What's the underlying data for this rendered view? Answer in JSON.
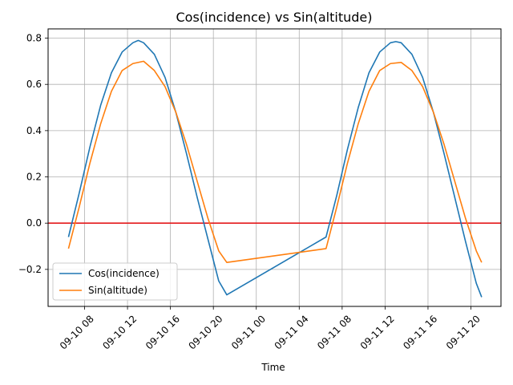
{
  "chart_data": {
    "type": "line",
    "title": "Cos(incidence) vs Sin(altitude)",
    "xlabel": "Time",
    "ylabel": "",
    "x_tick_labels": [
      "09-10 08",
      "09-10 12",
      "09-10 16",
      "09-10 20",
      "09-11 00",
      "09-11 04",
      "09-11 08",
      "09-11 12",
      "09-11 16",
      "09-11 20"
    ],
    "x_ticks": [
      "2019-09-10 08:00",
      "2019-09-10 12:00",
      "2019-09-10 16:00",
      "2019-09-10 20:00",
      "2019-09-11 00:00",
      "2019-09-11 04:00",
      "2019-09-11 08:00",
      "2019-09-11 12:00",
      "2019-09-11 16:00",
      "2019-09-11 20:00"
    ],
    "xlim": [
      "2019-09-10 04:36",
      "2019-09-11 22:48"
    ],
    "y_ticks": [
      -0.2,
      0.0,
      0.2,
      0.4,
      0.6,
      0.8
    ],
    "y_tick_labels": [
      "−0.2",
      "0.0",
      "0.2",
      "0.4",
      "0.6",
      "0.8"
    ],
    "ylim": [
      -0.36,
      0.84
    ],
    "grid": true,
    "legend_position": "lower-left",
    "reference_line": {
      "y": 0.0,
      "color": "#e41a1c"
    },
    "series": [
      {
        "name": "Cos(incidence)",
        "color": "#1f77b4",
        "points": [
          [
            "2019-09-10 06:30",
            -0.06
          ],
          [
            "2019-09-10 07:30",
            0.13
          ],
          [
            "2019-09-10 08:30",
            0.33
          ],
          [
            "2019-09-10 09:30",
            0.51
          ],
          [
            "2019-09-10 10:30",
            0.65
          ],
          [
            "2019-09-10 11:30",
            0.74
          ],
          [
            "2019-09-10 12:30",
            0.78
          ],
          [
            "2019-09-10 13:00",
            0.79
          ],
          [
            "2019-09-10 13:30",
            0.78
          ],
          [
            "2019-09-10 14:30",
            0.73
          ],
          [
            "2019-09-10 15:30",
            0.63
          ],
          [
            "2019-09-10 16:30",
            0.48
          ],
          [
            "2019-09-10 17:30",
            0.3
          ],
          [
            "2019-09-10 18:30",
            0.11
          ],
          [
            "2019-09-10 19:30",
            -0.07
          ],
          [
            "2019-09-10 20:30",
            -0.25
          ],
          [
            "2019-09-10 21:15",
            -0.31
          ],
          [
            "2019-09-11 06:30",
            -0.06
          ],
          [
            "2019-09-11 07:30",
            0.12
          ],
          [
            "2019-09-11 08:30",
            0.32
          ],
          [
            "2019-09-11 09:30",
            0.5
          ],
          [
            "2019-09-11 10:30",
            0.65
          ],
          [
            "2019-09-11 11:30",
            0.74
          ],
          [
            "2019-09-11 12:30",
            0.78
          ],
          [
            "2019-09-11 13:00",
            0.785
          ],
          [
            "2019-09-11 13:30",
            0.78
          ],
          [
            "2019-09-11 14:30",
            0.73
          ],
          [
            "2019-09-11 15:30",
            0.63
          ],
          [
            "2019-09-11 16:30",
            0.48
          ],
          [
            "2019-09-11 17:30",
            0.3
          ],
          [
            "2019-09-11 18:30",
            0.11
          ],
          [
            "2019-09-11 19:30",
            -0.08
          ],
          [
            "2019-09-11 20:30",
            -0.26
          ],
          [
            "2019-09-11 21:00",
            -0.32
          ]
        ]
      },
      {
        "name": "Sin(altitude)",
        "color": "#ff7f0e",
        "points": [
          [
            "2019-09-10 06:30",
            -0.11
          ],
          [
            "2019-09-10 07:30",
            0.07
          ],
          [
            "2019-09-10 08:30",
            0.26
          ],
          [
            "2019-09-10 09:30",
            0.43
          ],
          [
            "2019-09-10 10:30",
            0.57
          ],
          [
            "2019-09-10 11:30",
            0.66
          ],
          [
            "2019-09-10 12:30",
            0.69
          ],
          [
            "2019-09-10 13:30",
            0.7
          ],
          [
            "2019-09-10 14:30",
            0.66
          ],
          [
            "2019-09-10 15:30",
            0.59
          ],
          [
            "2019-09-10 16:30",
            0.48
          ],
          [
            "2019-09-10 17:30",
            0.34
          ],
          [
            "2019-09-10 18:30",
            0.18
          ],
          [
            "2019-09-10 19:30",
            0.02
          ],
          [
            "2019-09-10 20:30",
            -0.12
          ],
          [
            "2019-09-10 21:15",
            -0.17
          ],
          [
            "2019-09-11 06:30",
            -0.11
          ],
          [
            "2019-09-11 07:30",
            0.07
          ],
          [
            "2019-09-11 08:30",
            0.26
          ],
          [
            "2019-09-11 09:30",
            0.43
          ],
          [
            "2019-09-11 10:30",
            0.57
          ],
          [
            "2019-09-11 11:30",
            0.66
          ],
          [
            "2019-09-11 12:30",
            0.69
          ],
          [
            "2019-09-11 13:30",
            0.695
          ],
          [
            "2019-09-11 14:30",
            0.66
          ],
          [
            "2019-09-11 15:30",
            0.59
          ],
          [
            "2019-09-11 16:30",
            0.48
          ],
          [
            "2019-09-11 17:30",
            0.34
          ],
          [
            "2019-09-11 18:30",
            0.18
          ],
          [
            "2019-09-11 19:30",
            0.02
          ],
          [
            "2019-09-11 20:30",
            -0.12
          ],
          [
            "2019-09-11 21:00",
            -0.17
          ]
        ]
      }
    ]
  }
}
